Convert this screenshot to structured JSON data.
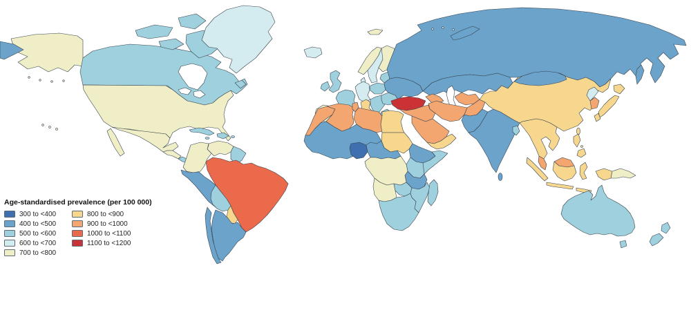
{
  "chart_data": {
    "type": "choropleth",
    "title": "Age-standardised prevalence (per 100 000)",
    "metric": "Age-standardised prevalence",
    "unit": "per 100 000",
    "legend_position": "bottom-left",
    "bins": [
      {
        "range": "300 to <400",
        "color": "#3f6fae"
      },
      {
        "range": "400 to <500",
        "color": "#6ba3cb"
      },
      {
        "range": "500 to <600",
        "color": "#9fd0de"
      },
      {
        "range": "600 to <700",
        "color": "#d4ecef"
      },
      {
        "range": "700 to <800",
        "color": "#efeec6"
      },
      {
        "range": "800 to <900",
        "color": "#f7d78e"
      },
      {
        "range": "900 to <1000",
        "color": "#f4a671"
      },
      {
        "range": "1000 to <1100",
        "color": "#eb6a4b"
      },
      {
        "range": "1100 to <1200",
        "color": "#ca3235"
      }
    ],
    "regions": {
      "canada": "500 to <600",
      "greenland": "600 to <700",
      "usa": "700 to <800",
      "hawaii": "700 to <800",
      "mexico": "700 to <800",
      "central-america": "700 to <800",
      "nicaragua-panama": "500 to <600",
      "cuba": "500 to <600",
      "hispaniola": "500 to <600",
      "jamaica": "500 to <600",
      "puerto-rico": "500 to <600",
      "colombia": "700 to <800",
      "venezuela": "700 to <800",
      "guyanas": "500 to <600",
      "peru-ecuador": "400 to <500",
      "bolivia": "500 to <600",
      "paraguay": "800 to <900",
      "brazil": "1000 to <1100",
      "argentina": "400 to <500",
      "chile": "400 to <500",
      "iceland": "600 to <700",
      "uk": "500 to <600",
      "ireland": "500 to <600",
      "norway": "700 to <800",
      "sweden": "600 to <700",
      "finland": "700 to <800",
      "denmark": "600 to <700",
      "baltics": "500 to <600",
      "poland": "500 to <600",
      "central-europe": "600 to <700",
      "france": "500 to <600",
      "iberia": "700 to <800",
      "italy": "800 to <900",
      "balkans": "500 to <600",
      "romania-bulgaria": "500 to <600",
      "greece": "500 to <600",
      "ukraine-belarus": "400 to <500",
      "russia": "400 to <500",
      "svalbard": "700 to <800",
      "turkey": "1100 to <1200",
      "caucasus": "900 to <1000",
      "kazakhstan-central-asia": "400 to <500",
      "turkmenistan": "900 to <1000",
      "iran": "900 to <1000",
      "iraq-syria": "900 to <1000",
      "saudi-arabia": "900 to <1000",
      "yemen-oman": "800 to <900",
      "afghanistan": "900 to <1000",
      "pakistan": "400 to <500",
      "india": "400 to <500",
      "bangladesh": "500 to <600",
      "sri-lanka": "400 to <500",
      "china": "800 to <900",
      "mongolia": "400 to <500",
      "north-korea": "600 to <700",
      "south-korea": "900 to <1000",
      "japan": "800 to <900",
      "taiwan": "800 to <900",
      "sakhalin": "400 to <500",
      "indochina": "800 to <900",
      "malaysia": "900 to <1000",
      "indonesia": "800 to <900",
      "borneo-malaysia": "900 to <1000",
      "philippines": "800 to <900",
      "papua-new-guinea": "700 to <800",
      "australia": "500 to <600",
      "new-zealand": "500 to <600",
      "morocco": "900 to <1000",
      "algeria": "900 to <1000",
      "tunisia": "900 to <1000",
      "libya": "900 to <1000",
      "egypt": "800 to <900",
      "sudan": "800 to <900",
      "west-africa": "400 to <500",
      "nigeria": "300 to <400",
      "cameroon-car": "400 to <500",
      "ethiopia": "400 to <500",
      "somalia": "500 to <600",
      "kenya-uganda": "500 to <600",
      "tanzania": "400 to <500",
      "drc-congo": "700 to <800",
      "angola": "700 to <800",
      "zambia": "500 to <600",
      "mozambique": "500 to <600",
      "southern-africa": "500 to <600",
      "madagascar": "500 to <600"
    }
  }
}
